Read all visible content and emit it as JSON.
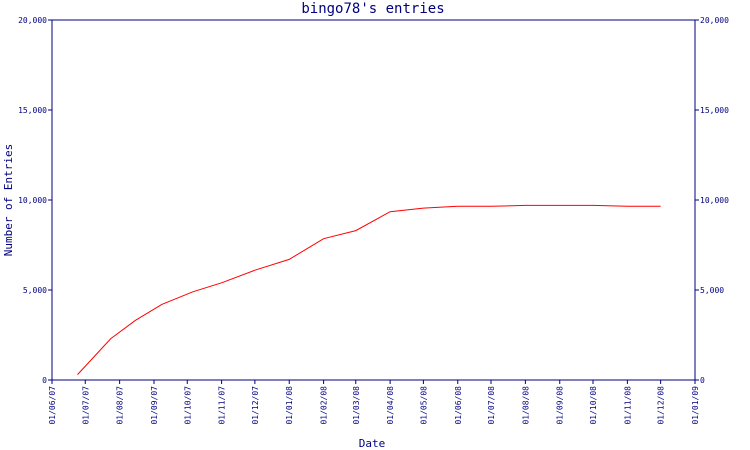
{
  "chart_data": {
    "type": "line",
    "title": "bingo78's entries",
    "xlabel": "Date",
    "ylabel": "Number of Entries",
    "ylim": [
      0,
      20000
    ],
    "y_ticks": [
      0,
      5000,
      10000,
      15000,
      20000
    ],
    "y_tick_labels": [
      "0",
      "5,000",
      "10,000",
      "15,000",
      "20,000"
    ],
    "x_tick_labels": [
      "01/06/07",
      "01/07/07",
      "01/08/07",
      "01/09/07",
      "01/10/07",
      "01/11/07",
      "01/12/07",
      "01/01/08",
      "01/02/08",
      "01/03/08",
      "01/04/08",
      "01/05/08",
      "01/06/08",
      "01/07/08",
      "01/08/08",
      "01/09/08",
      "01/10/08",
      "01/11/08",
      "01/12/08",
      "01/01/09"
    ],
    "grid": false,
    "right_axis_mirror": true,
    "series": [
      {
        "color": "#ff0000",
        "x": [
          "2007-06-24",
          "2007-07-24",
          "2007-08-15",
          "2007-09-08",
          "2007-10-06",
          "2007-11-01",
          "2007-12-01",
          "2008-01-01",
          "2008-02-01",
          "2008-03-01",
          "2008-04-01",
          "2008-05-01",
          "2008-06-01",
          "2008-07-01",
          "2008-08-01",
          "2008-09-01",
          "2008-10-01",
          "2008-11-01",
          "2008-12-01"
        ],
        "values": [
          300,
          2300,
          3300,
          4200,
          4900,
          5400,
          6100,
          6700,
          7850,
          8300,
          9350,
          9550,
          9650,
          9650,
          9700,
          9700,
          9700,
          9650,
          9650
        ]
      }
    ]
  }
}
